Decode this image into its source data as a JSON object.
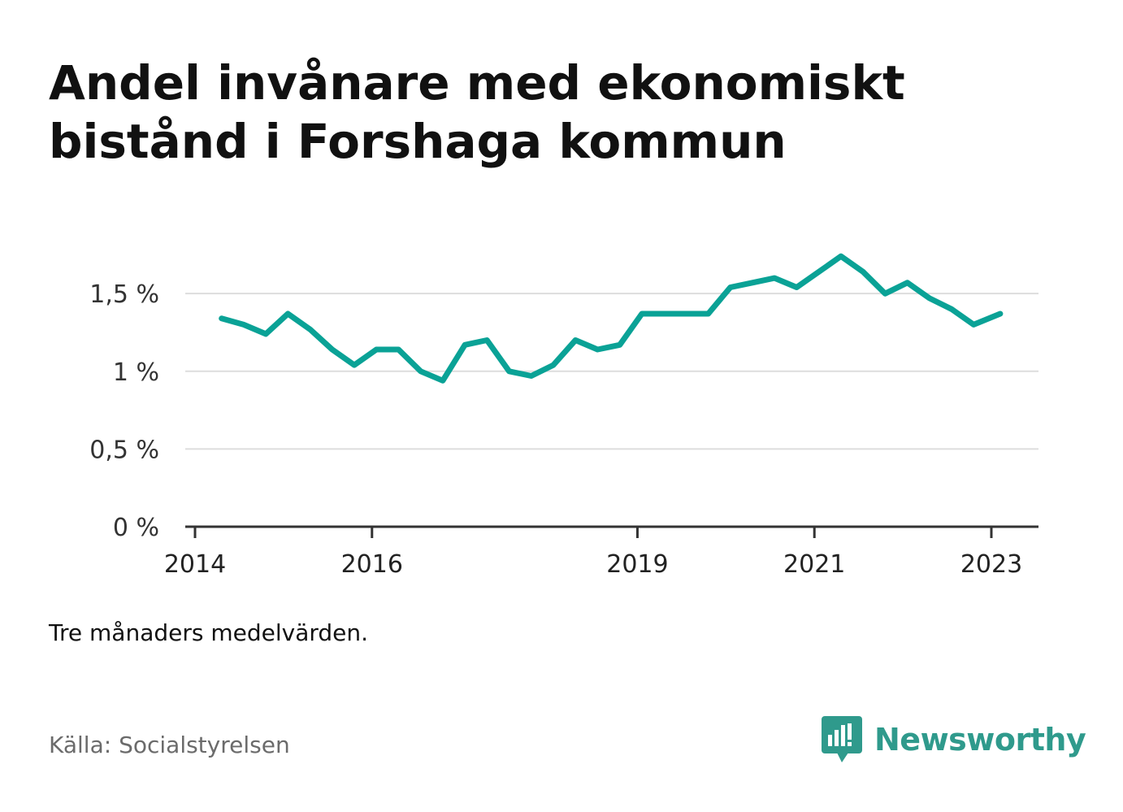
{
  "title": "Andel invånare med ekonomiskt bistånd i Forshaga kommun",
  "note": "Tre månaders medelvärden.",
  "source": "Källa: Socialstyrelsen",
  "brand": {
    "name": "Newsworthy",
    "icon": "chart-speech-bubble-icon",
    "color": "#2f9a8c"
  },
  "colors": {
    "line": "#0aa296",
    "grid": "#dddddd",
    "axis": "#333333"
  },
  "chart_data": {
    "type": "line",
    "title": "Andel invånare med ekonomiskt bistånd i Forshaga kommun",
    "xlabel": "",
    "ylabel": "",
    "ylim": [
      0,
      1.8
    ],
    "y_ticks": [
      0,
      0.5,
      1,
      1.5
    ],
    "y_tick_labels": [
      "0 %",
      "0,5 %",
      "1 %",
      "1,5 %"
    ],
    "x_range": [
      2014.0,
      2023.25
    ],
    "x_ticks": [
      2014,
      2016,
      2019,
      2021,
      2023
    ],
    "x_tick_labels": [
      "2014",
      "2016",
      "2019",
      "2021",
      "2023"
    ],
    "grid": true,
    "series": [
      {
        "x": [
          2014.3,
          2014.55,
          2014.8,
          2015.05,
          2015.3,
          2015.55,
          2015.8,
          2016.05,
          2016.3,
          2016.55,
          2016.8,
          2017.05,
          2017.3,
          2017.55,
          2017.8,
          2018.05,
          2018.3,
          2018.55,
          2018.8,
          2019.05,
          2019.3,
          2019.55,
          2019.8,
          2020.05,
          2020.3,
          2020.55,
          2020.8,
          2021.05,
          2021.3,
          2021.55,
          2021.8,
          2022.05,
          2022.3,
          2022.55,
          2022.8,
          2023.1
        ],
        "values": [
          1.34,
          1.3,
          1.24,
          1.37,
          1.27,
          1.14,
          1.04,
          1.14,
          1.14,
          1.0,
          0.94,
          1.17,
          1.2,
          1.0,
          0.97,
          1.04,
          1.2,
          1.14,
          1.17,
          1.37,
          1.37,
          1.37,
          1.37,
          1.54,
          1.57,
          1.6,
          1.54,
          1.64,
          1.74,
          1.64,
          1.5,
          1.57,
          1.47,
          1.4,
          1.3,
          1.37
        ]
      }
    ]
  }
}
